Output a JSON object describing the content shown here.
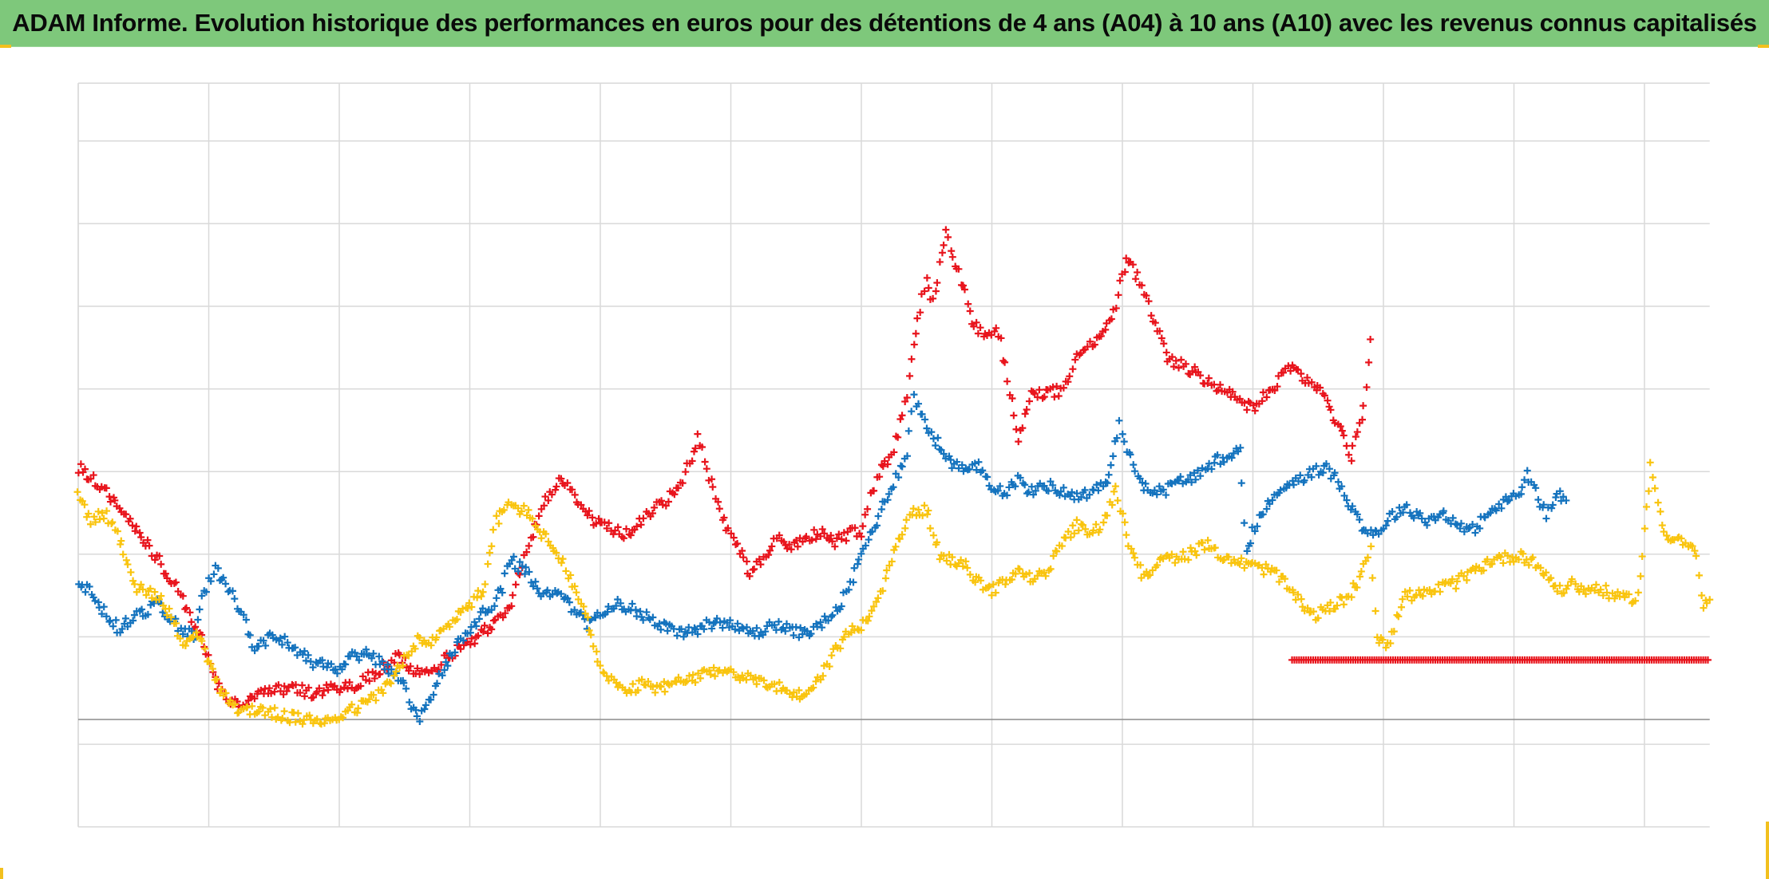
{
  "title": "ADAM Informe. Evolution historique des performances en euros pour des détentions de 4 ans (A04) à 10 ans (A10) avec les revenus connus capitalisés",
  "colors": {
    "title_bar": "#7ec87b",
    "series_red": "#e8141c",
    "series_blue": "#1473be",
    "series_yellow": "#f9c40e",
    "grid": "#d9d9d9",
    "corner_accent": "#f2c01e"
  },
  "chart_data": {
    "type": "scatter",
    "marker": "plus",
    "title": "ADAM Informe. Evolution historique des performances en euros pour des détentions de 4 ans (A04) à 10 ans (A10) avec les revenus connus capitalisés",
    "xlabel": "",
    "ylabel": "",
    "tick_labels_visible": false,
    "grid": true,
    "legend": "none",
    "xlim": [
      0,
      12.5
    ],
    "ylim": [
      -1.3,
      7.7
    ],
    "zero_line": 0,
    "note": "Axes carry no printed tick labels; values are read in grid-cell units (x: vertical gridline index, y: horizontal gridline index from the dark baseline).",
    "series": [
      {
        "color": "#e8141c",
        "points": [
          [
            0,
            3.05
          ],
          [
            0.15,
            2.85
          ],
          [
            0.3,
            2.6
          ],
          [
            0.45,
            2.3
          ],
          [
            0.6,
            1.95
          ],
          [
            0.75,
            1.6
          ],
          [
            0.85,
            1.25
          ],
          [
            0.95,
            1.0
          ],
          [
            1.05,
            0.45
          ],
          [
            1.15,
            0.25
          ],
          [
            1.25,
            0.18
          ],
          [
            1.4,
            0.3
          ],
          [
            1.6,
            0.38
          ],
          [
            1.8,
            0.32
          ],
          [
            2.0,
            0.38
          ],
          [
            2.15,
            0.42
          ],
          [
            2.3,
            0.6
          ],
          [
            2.45,
            0.75
          ],
          [
            2.6,
            0.55
          ],
          [
            2.75,
            0.65
          ],
          [
            2.9,
            0.85
          ],
          [
            3.0,
            0.9
          ],
          [
            3.1,
            1.05
          ],
          [
            3.2,
            1.2
          ],
          [
            3.3,
            1.35
          ],
          [
            3.4,
            1.9
          ],
          [
            3.5,
            2.35
          ],
          [
            3.6,
            2.7
          ],
          [
            3.7,
            2.9
          ],
          [
            3.8,
            2.7
          ],
          [
            3.95,
            2.4
          ],
          [
            4.1,
            2.3
          ],
          [
            4.2,
            2.25
          ],
          [
            4.35,
            2.45
          ],
          [
            4.5,
            2.65
          ],
          [
            4.6,
            2.8
          ],
          [
            4.7,
            3.15
          ],
          [
            4.75,
            3.45
          ],
          [
            4.85,
            2.85
          ],
          [
            4.95,
            2.4
          ],
          [
            5.05,
            2.1
          ],
          [
            5.15,
            1.78
          ],
          [
            5.25,
            1.95
          ],
          [
            5.35,
            2.25
          ],
          [
            5.45,
            2.05
          ],
          [
            5.55,
            2.2
          ],
          [
            5.7,
            2.25
          ],
          [
            5.8,
            2.15
          ],
          [
            5.9,
            2.25
          ],
          [
            6.0,
            2.28
          ],
          [
            6.05,
            2.6
          ],
          [
            6.15,
            3.05
          ],
          [
            6.25,
            3.25
          ],
          [
            6.35,
            3.95
          ],
          [
            6.4,
            4.6
          ],
          [
            6.45,
            4.95
          ],
          [
            6.5,
            5.35
          ],
          [
            6.55,
            5.05
          ],
          [
            6.65,
            5.95
          ],
          [
            6.7,
            5.6
          ],
          [
            6.78,
            5.25
          ],
          [
            6.85,
            4.8
          ],
          [
            6.95,
            4.65
          ],
          [
            7.05,
            4.7
          ],
          [
            7.2,
            3.38
          ],
          [
            7.3,
            3.95
          ],
          [
            7.45,
            3.95
          ],
          [
            7.55,
            4.0
          ],
          [
            7.65,
            4.4
          ],
          [
            7.75,
            4.55
          ],
          [
            7.85,
            4.65
          ],
          [
            7.95,
            5.0
          ],
          [
            8.0,
            5.45
          ],
          [
            8.05,
            5.55
          ],
          [
            8.15,
            5.25
          ],
          [
            8.25,
            4.8
          ],
          [
            8.35,
            4.35
          ],
          [
            8.45,
            4.3
          ],
          [
            8.55,
            4.2
          ],
          [
            8.7,
            4.05
          ],
          [
            8.8,
            3.95
          ],
          [
            8.9,
            3.85
          ],
          [
            9.0,
            3.75
          ],
          [
            9.15,
            4.0
          ],
          [
            9.25,
            4.25
          ],
          [
            9.35,
            4.2
          ],
          [
            9.5,
            4.0
          ],
          [
            9.65,
            3.6
          ],
          [
            9.75,
            3.2
          ],
          [
            9.8,
            3.5
          ],
          [
            9.85,
            3.75
          ],
          [
            9.9,
            4.6
          ]
        ],
        "flat_segment": {
          "x_start": 9.3,
          "x_end": 12.5,
          "y": 0.72
        }
      },
      {
        "color": "#1473be",
        "points": [
          [
            0,
            1.6
          ],
          [
            0.1,
            1.55
          ],
          [
            0.2,
            1.3
          ],
          [
            0.3,
            1.1
          ],
          [
            0.45,
            1.25
          ],
          [
            0.6,
            1.4
          ],
          [
            0.75,
            1.15
          ],
          [
            0.9,
            1.0
          ],
          [
            0.95,
            1.5
          ],
          [
            1.05,
            1.8
          ],
          [
            1.15,
            1.6
          ],
          [
            1.25,
            1.3
          ],
          [
            1.35,
            0.85
          ],
          [
            1.5,
            1.05
          ],
          [
            1.65,
            0.85
          ],
          [
            1.8,
            0.7
          ],
          [
            1.9,
            0.65
          ],
          [
            2.0,
            0.6
          ],
          [
            2.1,
            0.75
          ],
          [
            2.2,
            0.78
          ],
          [
            2.3,
            0.72
          ],
          [
            2.4,
            0.55
          ],
          [
            2.5,
            0.4
          ],
          [
            2.55,
            0.15
          ],
          [
            2.6,
            0.0
          ],
          [
            2.65,
            0.1
          ],
          [
            2.75,
            0.45
          ],
          [
            2.85,
            0.75
          ],
          [
            2.95,
            1.0
          ],
          [
            3.05,
            1.2
          ],
          [
            3.15,
            1.35
          ],
          [
            3.25,
            1.6
          ],
          [
            3.3,
            1.95
          ],
          [
            3.45,
            1.75
          ],
          [
            3.55,
            1.5
          ],
          [
            3.7,
            1.55
          ],
          [
            3.8,
            1.3
          ],
          [
            3.9,
            1.15
          ],
          [
            4.0,
            1.25
          ],
          [
            4.1,
            1.4
          ],
          [
            4.25,
            1.35
          ],
          [
            4.35,
            1.25
          ],
          [
            4.45,
            1.15
          ],
          [
            4.6,
            1.05
          ],
          [
            4.75,
            1.1
          ],
          [
            4.9,
            1.2
          ],
          [
            5.05,
            1.1
          ],
          [
            5.2,
            1.05
          ],
          [
            5.35,
            1.15
          ],
          [
            5.5,
            1.05
          ],
          [
            5.65,
            1.1
          ],
          [
            5.8,
            1.3
          ],
          [
            5.9,
            1.55
          ],
          [
            6.0,
            2.0
          ],
          [
            6.1,
            2.35
          ],
          [
            6.2,
            2.7
          ],
          [
            6.3,
            3.05
          ],
          [
            6.35,
            3.25
          ],
          [
            6.4,
            3.9
          ],
          [
            6.5,
            3.55
          ],
          [
            6.6,
            3.3
          ],
          [
            6.7,
            3.1
          ],
          [
            6.8,
            3.0
          ],
          [
            6.9,
            3.05
          ],
          [
            7.0,
            2.85
          ],
          [
            7.1,
            2.75
          ],
          [
            7.2,
            2.9
          ],
          [
            7.3,
            2.75
          ],
          [
            7.4,
            2.85
          ],
          [
            7.55,
            2.75
          ],
          [
            7.7,
            2.7
          ],
          [
            7.8,
            2.8
          ],
          [
            7.9,
            2.9
          ],
          [
            7.98,
            3.6
          ],
          [
            8.05,
            3.2
          ],
          [
            8.15,
            2.85
          ],
          [
            8.3,
            2.75
          ],
          [
            8.4,
            2.85
          ],
          [
            8.55,
            2.95
          ],
          [
            8.65,
            3.0
          ],
          [
            8.7,
            3.1
          ],
          [
            8.8,
            3.2
          ],
          [
            8.9,
            3.25
          ],
          [
            8.95,
            2.0
          ],
          [
            9.0,
            2.3
          ],
          [
            9.1,
            2.55
          ],
          [
            9.25,
            2.85
          ],
          [
            9.4,
            2.95
          ],
          [
            9.55,
            3.05
          ],
          [
            9.65,
            2.9
          ],
          [
            9.75,
            2.6
          ],
          [
            9.85,
            2.3
          ],
          [
            9.95,
            2.25
          ],
          [
            10.05,
            2.45
          ],
          [
            10.15,
            2.55
          ],
          [
            10.25,
            2.5
          ],
          [
            10.35,
            2.4
          ],
          [
            10.45,
            2.5
          ],
          [
            10.55,
            2.4
          ],
          [
            10.65,
            2.25
          ],
          [
            10.75,
            2.4
          ],
          [
            10.85,
            2.55
          ],
          [
            10.95,
            2.65
          ],
          [
            11.05,
            2.75
          ],
          [
            11.1,
            2.95
          ],
          [
            11.15,
            2.85
          ],
          [
            11.2,
            2.6
          ],
          [
            11.25,
            2.5
          ],
          [
            11.35,
            2.7
          ],
          [
            11.4,
            2.65
          ]
        ]
      },
      {
        "color": "#f9c40e",
        "points": [
          [
            0,
            2.75
          ],
          [
            0.1,
            2.4
          ],
          [
            0.2,
            2.5
          ],
          [
            0.3,
            2.25
          ],
          [
            0.45,
            1.6
          ],
          [
            0.6,
            1.5
          ],
          [
            0.7,
            1.3
          ],
          [
            0.8,
            0.9
          ],
          [
            0.9,
            1.1
          ],
          [
            1.0,
            0.7
          ],
          [
            1.1,
            0.3
          ],
          [
            1.25,
            0.1
          ],
          [
            1.4,
            0.12
          ],
          [
            1.55,
            0.05
          ],
          [
            1.7,
            0.0
          ],
          [
            1.85,
            -0.02
          ],
          [
            2.0,
            0.05
          ],
          [
            2.15,
            0.15
          ],
          [
            2.3,
            0.3
          ],
          [
            2.45,
            0.6
          ],
          [
            2.6,
            0.95
          ],
          [
            2.7,
            0.9
          ],
          [
            2.8,
            1.1
          ],
          [
            2.9,
            1.25
          ],
          [
            3.0,
            1.4
          ],
          [
            3.1,
            1.55
          ],
          [
            3.2,
            2.4
          ],
          [
            3.3,
            2.6
          ],
          [
            3.45,
            2.5
          ],
          [
            3.55,
            2.25
          ],
          [
            3.7,
            1.95
          ],
          [
            3.8,
            1.55
          ],
          [
            3.9,
            1.25
          ],
          [
            4.0,
            0.6
          ],
          [
            4.1,
            0.45
          ],
          [
            4.2,
            0.3
          ],
          [
            4.3,
            0.42
          ],
          [
            4.45,
            0.38
          ],
          [
            4.6,
            0.45
          ],
          [
            4.75,
            0.5
          ],
          [
            4.9,
            0.6
          ],
          [
            5.0,
            0.58
          ],
          [
            5.15,
            0.48
          ],
          [
            5.3,
            0.45
          ],
          [
            5.45,
            0.32
          ],
          [
            5.55,
            0.28
          ],
          [
            5.7,
            0.55
          ],
          [
            5.8,
            0.85
          ],
          [
            5.9,
            1.05
          ],
          [
            6.0,
            1.15
          ],
          [
            6.1,
            1.3
          ],
          [
            6.2,
            1.75
          ],
          [
            6.3,
            2.25
          ],
          [
            6.4,
            2.5
          ],
          [
            6.5,
            2.55
          ],
          [
            6.6,
            2.0
          ],
          [
            6.7,
            1.9
          ],
          [
            6.8,
            1.85
          ],
          [
            6.9,
            1.65
          ],
          [
            7.0,
            1.55
          ],
          [
            7.1,
            1.7
          ],
          [
            7.2,
            1.8
          ],
          [
            7.3,
            1.7
          ],
          [
            7.4,
            1.75
          ],
          [
            7.55,
            2.15
          ],
          [
            7.65,
            2.35
          ],
          [
            7.75,
            2.25
          ],
          [
            7.85,
            2.35
          ],
          [
            7.95,
            2.8
          ],
          [
            8.05,
            2.15
          ],
          [
            8.15,
            1.75
          ],
          [
            8.25,
            1.85
          ],
          [
            8.35,
            1.95
          ],
          [
            8.45,
            1.95
          ],
          [
            8.55,
            2.05
          ],
          [
            8.65,
            2.1
          ],
          [
            8.75,
            2.0
          ],
          [
            8.9,
            1.9
          ],
          [
            9.0,
            1.85
          ],
          [
            9.15,
            1.8
          ],
          [
            9.3,
            1.55
          ],
          [
            9.45,
            1.25
          ],
          [
            9.6,
            1.35
          ],
          [
            9.7,
            1.45
          ],
          [
            9.8,
            1.65
          ],
          [
            9.9,
            2.1
          ],
          [
            9.95,
            1.0
          ],
          [
            10.05,
            0.9
          ],
          [
            10.15,
            1.5
          ],
          [
            10.3,
            1.5
          ],
          [
            10.45,
            1.6
          ],
          [
            10.55,
            1.65
          ],
          [
            10.65,
            1.75
          ],
          [
            10.75,
            1.85
          ],
          [
            10.85,
            1.95
          ],
          [
            10.95,
            1.95
          ],
          [
            11.05,
            2.0
          ],
          [
            11.15,
            1.9
          ],
          [
            11.25,
            1.75
          ],
          [
            11.35,
            1.55
          ],
          [
            11.45,
            1.65
          ],
          [
            11.55,
            1.55
          ],
          [
            11.65,
            1.6
          ],
          [
            11.75,
            1.5
          ],
          [
            11.85,
            1.45
          ],
          [
            11.95,
            1.5
          ],
          [
            12.05,
            3.05
          ],
          [
            12.15,
            2.25
          ],
          [
            12.25,
            2.2
          ],
          [
            12.35,
            2.1
          ],
          [
            12.4,
            1.95
          ],
          [
            12.45,
            1.35
          ],
          [
            12.5,
            1.45
          ]
        ]
      }
    ]
  }
}
